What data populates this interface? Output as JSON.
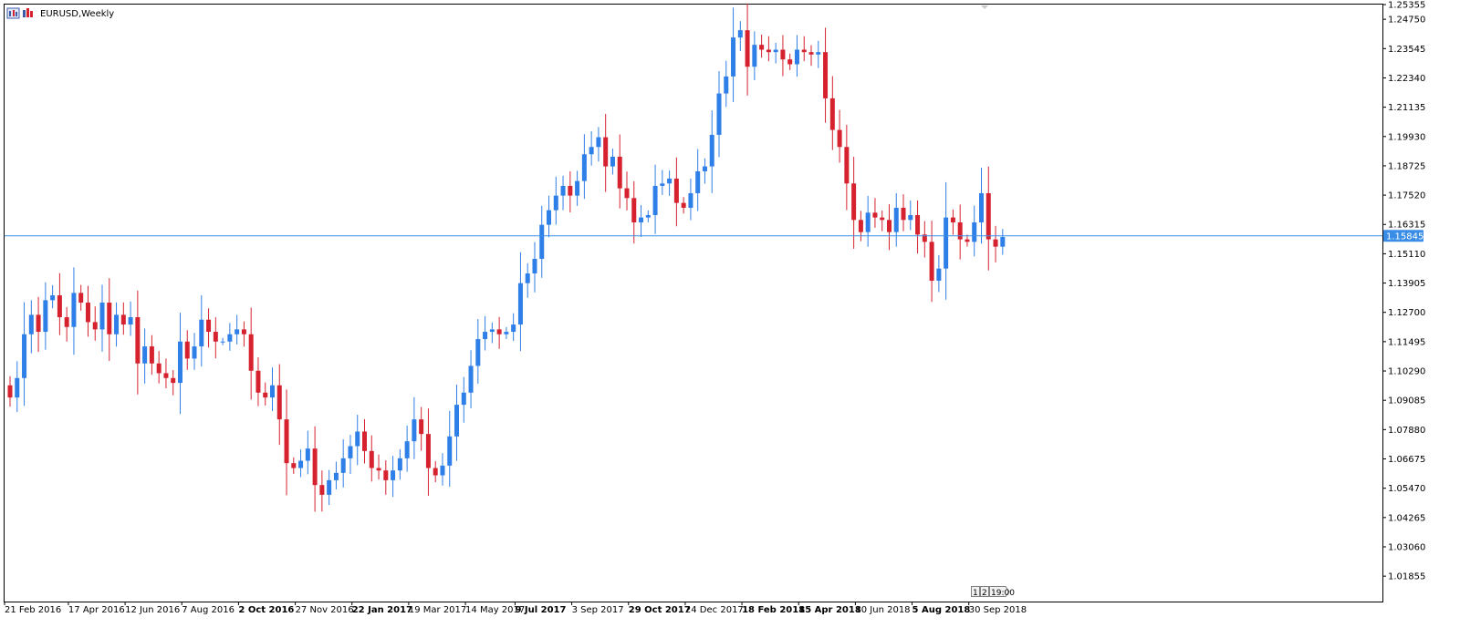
{
  "window": {
    "title": "EURUSD,Weekly"
  },
  "colors": {
    "bull": "#2f7fe8",
    "bear": "#d6222f",
    "price_line": "#3a8de6",
    "background": "#ffffff",
    "frame": "#000000"
  },
  "current_price": {
    "value": 1.15845,
    "label": "1.15845"
  },
  "timeframe_badge": {
    "left": "1",
    "right": "2",
    "time": "19:00"
  },
  "chart_data": {
    "type": "candlestick",
    "symbol": "EURUSD",
    "timeframe": "Weekly",
    "grid": false,
    "ylim": [
      1.00811,
      1.25355
    ],
    "y_ticks": [
      "1.25355",
      "1.24750",
      "1.23545",
      "1.22340",
      "1.21135",
      "1.19930",
      "1.18725",
      "1.17520",
      "1.16315",
      "1.15110",
      "1.13905",
      "1.12700",
      "1.11495",
      "1.10290",
      "1.09085",
      "1.07880",
      "1.06675",
      "1.05470",
      "1.04265",
      "1.03060",
      "1.01855"
    ],
    "x_labels": [
      {
        "index": 0,
        "text": "21 Feb 2016",
        "bold": false
      },
      {
        "index": 9,
        "text": "17 Apr 2016",
        "bold": false
      },
      {
        "index": 17,
        "text": "12 Jun 2016",
        "bold": false
      },
      {
        "index": 25,
        "text": "7 Aug 2016",
        "bold": false
      },
      {
        "index": 33,
        "text": "2 Oct 2016",
        "bold": true
      },
      {
        "index": 41,
        "text": "27 Nov 2016",
        "bold": false
      },
      {
        "index": 49,
        "text": "22 Jan 2017",
        "bold": true
      },
      {
        "index": 57,
        "text": "19 Mar 2017",
        "bold": false
      },
      {
        "index": 65,
        "text": "14 May 2017",
        "bold": false
      },
      {
        "index": 72,
        "text": "9 Jul 2017",
        "bold": true
      },
      {
        "index": 80,
        "text": "3 Sep 2017",
        "bold": false
      },
      {
        "index": 88,
        "text": "29 Oct 2017",
        "bold": true
      },
      {
        "index": 96,
        "text": "24 Dec 2017",
        "bold": false
      },
      {
        "index": 104,
        "text": "18 Feb 2018",
        "bold": true
      },
      {
        "index": 112,
        "text": "15 Apr 2018",
        "bold": true
      },
      {
        "index": 120,
        "text": "10 Jun 2018",
        "bold": false
      },
      {
        "index": 128,
        "text": "5 Aug 2018",
        "bold": true
      },
      {
        "index": 136,
        "text": "30 Sep 2018",
        "bold": false
      }
    ],
    "closes": [
      1.092,
      1.1,
      1.118,
      1.126,
      1.119,
      1.132,
      1.134,
      1.125,
      1.121,
      1.135,
      1.131,
      1.123,
      1.12,
      1.131,
      1.118,
      1.126,
      1.122,
      1.125,
      1.106,
      1.113,
      1.106,
      1.102,
      1.1,
      1.098,
      1.115,
      1.108,
      1.113,
      1.124,
      1.119,
      1.115,
      1.115,
      1.118,
      1.12,
      1.118,
      1.103,
      1.094,
      1.092,
      1.097,
      1.083,
      1.065,
      1.063,
      1.066,
      1.071,
      1.056,
      1.052,
      1.058,
      1.061,
      1.067,
      1.072,
      1.078,
      1.07,
      1.063,
      1.062,
      1.058,
      1.062,
      1.067,
      1.074,
      1.083,
      1.077,
      1.063,
      1.06,
      1.064,
      1.076,
      1.089,
      1.094,
      1.105,
      1.116,
      1.119,
      1.12,
      1.118,
      1.119,
      1.122,
      1.139,
      1.143,
      1.149,
      1.163,
      1.169,
      1.175,
      1.179,
      1.175,
      1.181,
      1.192,
      1.195,
      1.199,
      1.187,
      1.191,
      1.178,
      1.174,
      1.164,
      1.166,
      1.167,
      1.179,
      1.18,
      1.182,
      1.172,
      1.17,
      1.176,
      1.185,
      1.187,
      1.2,
      1.217,
      1.224,
      1.24,
      1.243,
      1.228,
      1.237,
      1.235,
      1.234,
      1.235,
      1.231,
      1.229,
      1.235,
      1.234,
      1.233,
      1.234,
      1.215,
      1.202,
      1.195,
      1.18,
      1.165,
      1.16,
      1.168,
      1.166,
      1.165,
      1.16,
      1.17,
      1.165,
      1.167,
      1.159,
      1.156,
      1.14,
      1.145,
      1.166,
      1.164,
      1.157,
      1.156,
      1.164,
      1.176,
      1.157,
      1.154,
      1.158
    ],
    "open": 1.097
  }
}
